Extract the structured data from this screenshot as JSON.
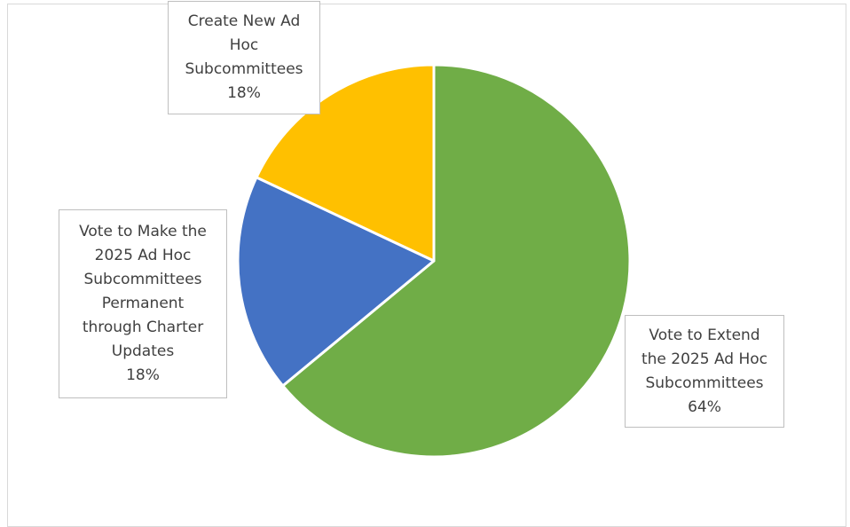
{
  "chart_data": {
    "type": "pie",
    "title": "",
    "slices": [
      {
        "label": "Vote to Extend the 2025 Ad Hoc Subcommittees",
        "label_lines": [
          "Vote to Extend",
          "the 2025 Ad Hoc",
          "Subcommittees"
        ],
        "value": 64,
        "pct_text": "64%",
        "color": "#70ad47"
      },
      {
        "label": "Vote to Make the 2025 Ad Hoc Subcommittees Permanent through Charter Updates",
        "label_lines": [
          "Vote to Make the",
          "2025 Ad Hoc",
          "Subcommittees",
          "Permanent",
          "through Charter",
          "Updates"
        ],
        "value": 18,
        "pct_text": "18%",
        "color": "#4472c4"
      },
      {
        "label": "Create New Ad Hoc Subcommittees",
        "label_lines": [
          "Create New Ad",
          "Hoc",
          "Subcommittees"
        ],
        "value": 18,
        "pct_text": "18%",
        "color": "#ffc000"
      }
    ],
    "start_angle_deg": 0,
    "direction": "clockwise",
    "legend": "none",
    "data_labels": "callout"
  }
}
